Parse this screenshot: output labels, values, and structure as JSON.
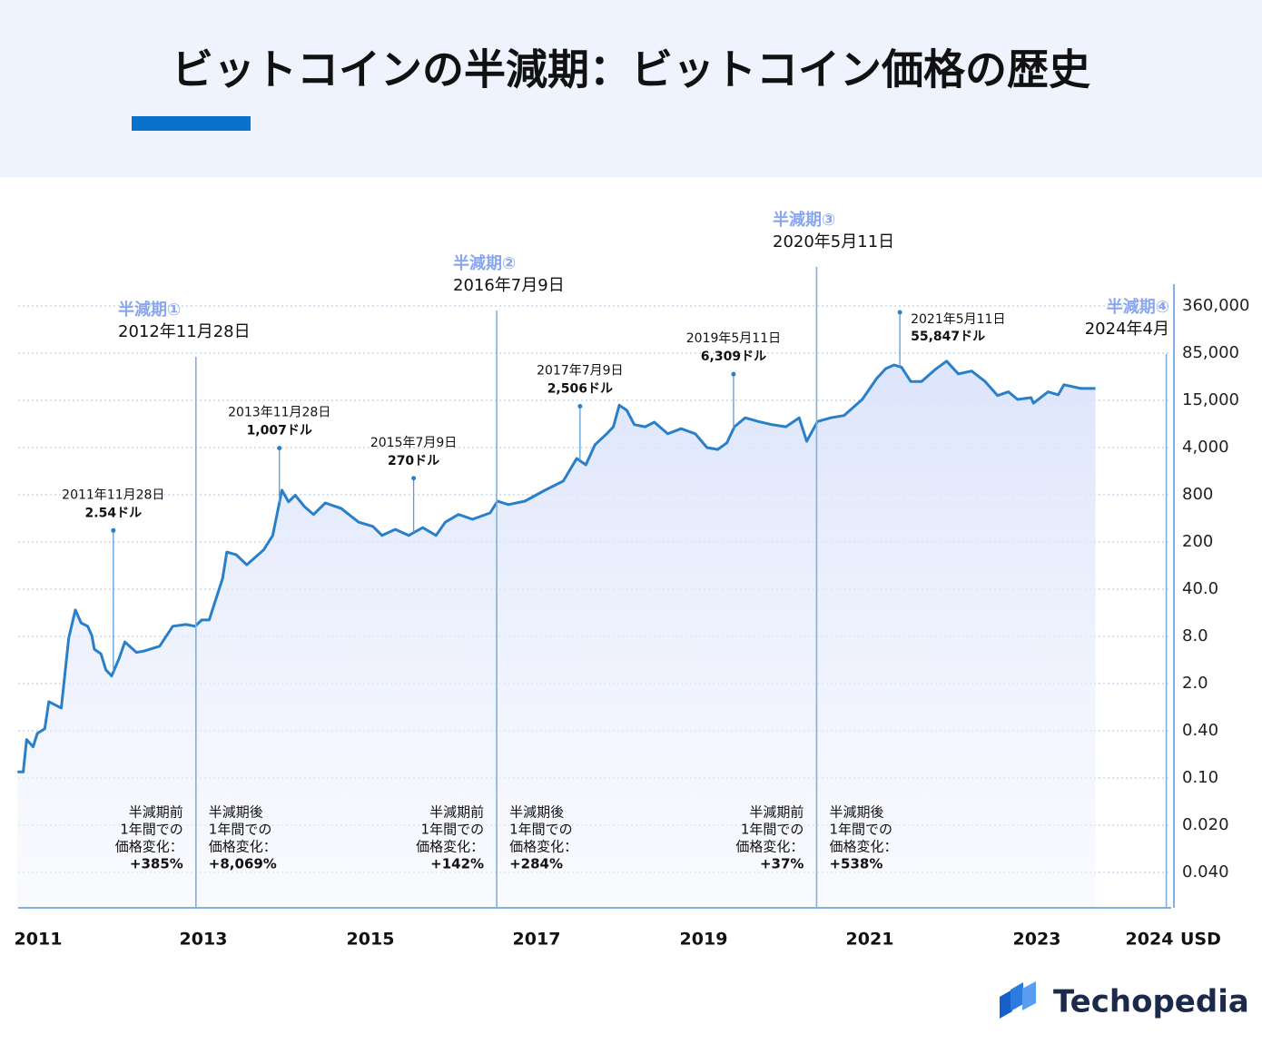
{
  "header": {
    "title": "ビットコインの半減期：ビットコイン価格の歴史"
  },
  "brand": "Techopedia",
  "chart_data": {
    "type": "line",
    "y_scale": "log",
    "grid": true,
    "y_label": "USD",
    "x": [
      2010.75,
      2010.82,
      2010.86,
      2010.94,
      2010.99,
      2011.08,
      2011.13,
      2011.28,
      2011.37,
      2011.45,
      2011.52,
      2011.6,
      2011.65,
      2011.68,
      2011.76,
      2011.82,
      2011.89,
      2011.98,
      2012.05,
      2012.19,
      2012.28,
      2012.47,
      2012.63,
      2012.79,
      2012.9,
      2012.98,
      2013.07,
      2013.13,
      2013.23,
      2013.28,
      2013.39,
      2013.52,
      2013.72,
      2013.83,
      2013.94,
      2014.02,
      2014.1,
      2014.21,
      2014.32,
      2014.46,
      2014.65,
      2014.86,
      2015.03,
      2015.14,
      2015.3,
      2015.46,
      2015.63,
      2015.79,
      2015.9,
      2016.06,
      2016.23,
      2016.44,
      2016.53,
      2016.66,
      2016.86,
      2017.1,
      2017.32,
      2017.48,
      2017.59,
      2017.7,
      2017.84,
      2017.92,
      2017.99,
      2018.08,
      2018.17,
      2018.3,
      2018.41,
      2018.57,
      2018.73,
      2018.9,
      2019.04,
      2019.17,
      2019.28,
      2019.37,
      2019.5,
      2019.66,
      2019.82,
      2019.99,
      2020.15,
      2020.24,
      2020.37,
      2020.53,
      2020.69,
      2020.91,
      2021.08,
      2021.19,
      2021.29,
      2021.38,
      2021.49,
      2021.62,
      2021.78,
      2021.92,
      2022.06,
      2022.22,
      2022.38,
      2022.53,
      2022.66,
      2022.77,
      2022.93,
      2022.96,
      2023.1,
      2023.19,
      2023.24,
      2023.39,
      2023.52
    ],
    "series": [
      {
        "color": "#2a7fc9",
        "values": [
          0.12,
          0.12,
          0.31,
          0.25,
          0.37,
          0.43,
          1.08,
          0.87,
          7.6,
          19.7,
          12.7,
          11.3,
          8.2,
          5.5,
          4.8,
          3.0,
          2.5,
          4.2,
          6.8,
          5.0,
          5.2,
          6.0,
          11.3,
          12,
          11.3,
          14,
          14,
          24,
          58,
          142,
          130,
          92,
          152,
          242,
          933,
          650,
          790,
          565,
          448,
          630,
          535,
          358,
          316,
          242,
          290,
          242,
          305,
          242,
          358,
          448,
          389,
          470,
          664,
          600,
          664,
          933,
          1276,
          2760,
          2225,
          4340,
          5880,
          7150,
          13100,
          11350,
          7600,
          7150,
          8160,
          5880,
          6780,
          5880,
          4000,
          3750,
          4560,
          7150,
          9200,
          8300,
          7600,
          7150,
          9200,
          4770,
          8300,
          9200,
          9800,
          15560,
          33300,
          48000,
          55000,
          50500,
          30000,
          30000,
          46300,
          63400,
          39600,
          44000,
          30000,
          17900,
          20500,
          15500,
          16600,
          13850,
          20500,
          18400,
          26600,
          23200,
          23200
        ]
      }
    ],
    "xticks": [
      2011,
      2013,
      2015,
      2017,
      2019,
      2021,
      2023,
      2024
    ],
    "yticks": [
      {
        "value": 360000,
        "label": "360,000"
      },
      {
        "value": 85000,
        "label": "85,000"
      },
      {
        "value": 15000,
        "label": "15,000"
      },
      {
        "value": 4000,
        "label": "4,000"
      },
      800,
      200,
      {
        "value": 40,
        "label": "40.0"
      },
      {
        "value": 8,
        "label": "8.0"
      },
      {
        "value": 2,
        "label": "2.0"
      },
      {
        "value": 0.4,
        "label": "0.40"
      },
      {
        "value": 0.1,
        "label": "0.10"
      },
      {
        "value": 0.02,
        "label": "0.020"
      },
      {
        "value": 0.04,
        "label": "0.040"
      }
    ],
    "halvings": [
      {
        "x": 2012.91,
        "name": "半減期①",
        "date": "2012年11月28日",
        "before": {
          "text": [
            "半減期前",
            "1年間での",
            "価格変化："
          ],
          "change": 385,
          "change_label": "+385%"
        },
        "after": {
          "text": [
            "半減期後",
            "1年間での",
            "価格変化："
          ],
          "change": 8069,
          "change_label": "+8,069%"
        }
      },
      {
        "x": 2016.52,
        "name": "半減期②",
        "date": "2016年7月9日",
        "before": {
          "text": [
            "半減期前",
            "1年間での",
            "価格変化："
          ],
          "change": 142,
          "change_label": "+142%"
        },
        "after": {
          "text": [
            "半減期後",
            "1年間での",
            "価格変化："
          ],
          "change": 284,
          "change_label": "+284%"
        }
      },
      {
        "x": 2020.36,
        "name": "半減期③",
        "date": "2020年5月11日",
        "before": {
          "text": [
            "半減期前",
            "1年間での",
            "価格変化："
          ],
          "change": 37,
          "change_label": "+37%"
        },
        "after": {
          "text": [
            "半減期後",
            "1年間での",
            "価格変化："
          ],
          "change": 538,
          "change_label": "+538%"
        }
      },
      {
        "x": 2024.15,
        "name": "半減期④",
        "date": "2024年4月"
      }
    ],
    "annotations": [
      {
        "x": 2011.91,
        "date": "2011年11月28日",
        "price": 2.54,
        "price_label": "2.54ドル"
      },
      {
        "x": 2013.91,
        "date": "2013年11月28日",
        "price": 1007,
        "price_label": "1,007ドル"
      },
      {
        "x": 2015.52,
        "date": "2015年7月9日",
        "price": 270,
        "price_label": "270ドル"
      },
      {
        "x": 2017.52,
        "date": "2017年7月9日",
        "price": 2506,
        "price_label": "2,506ドル"
      },
      {
        "x": 2019.36,
        "date": "2019年5月11日",
        "price": 6309,
        "price_label": "6,309ドル"
      },
      {
        "x": 2021.36,
        "date": "2021年5月11日",
        "price": 55847,
        "price_label": "55,847ドル"
      }
    ]
  }
}
